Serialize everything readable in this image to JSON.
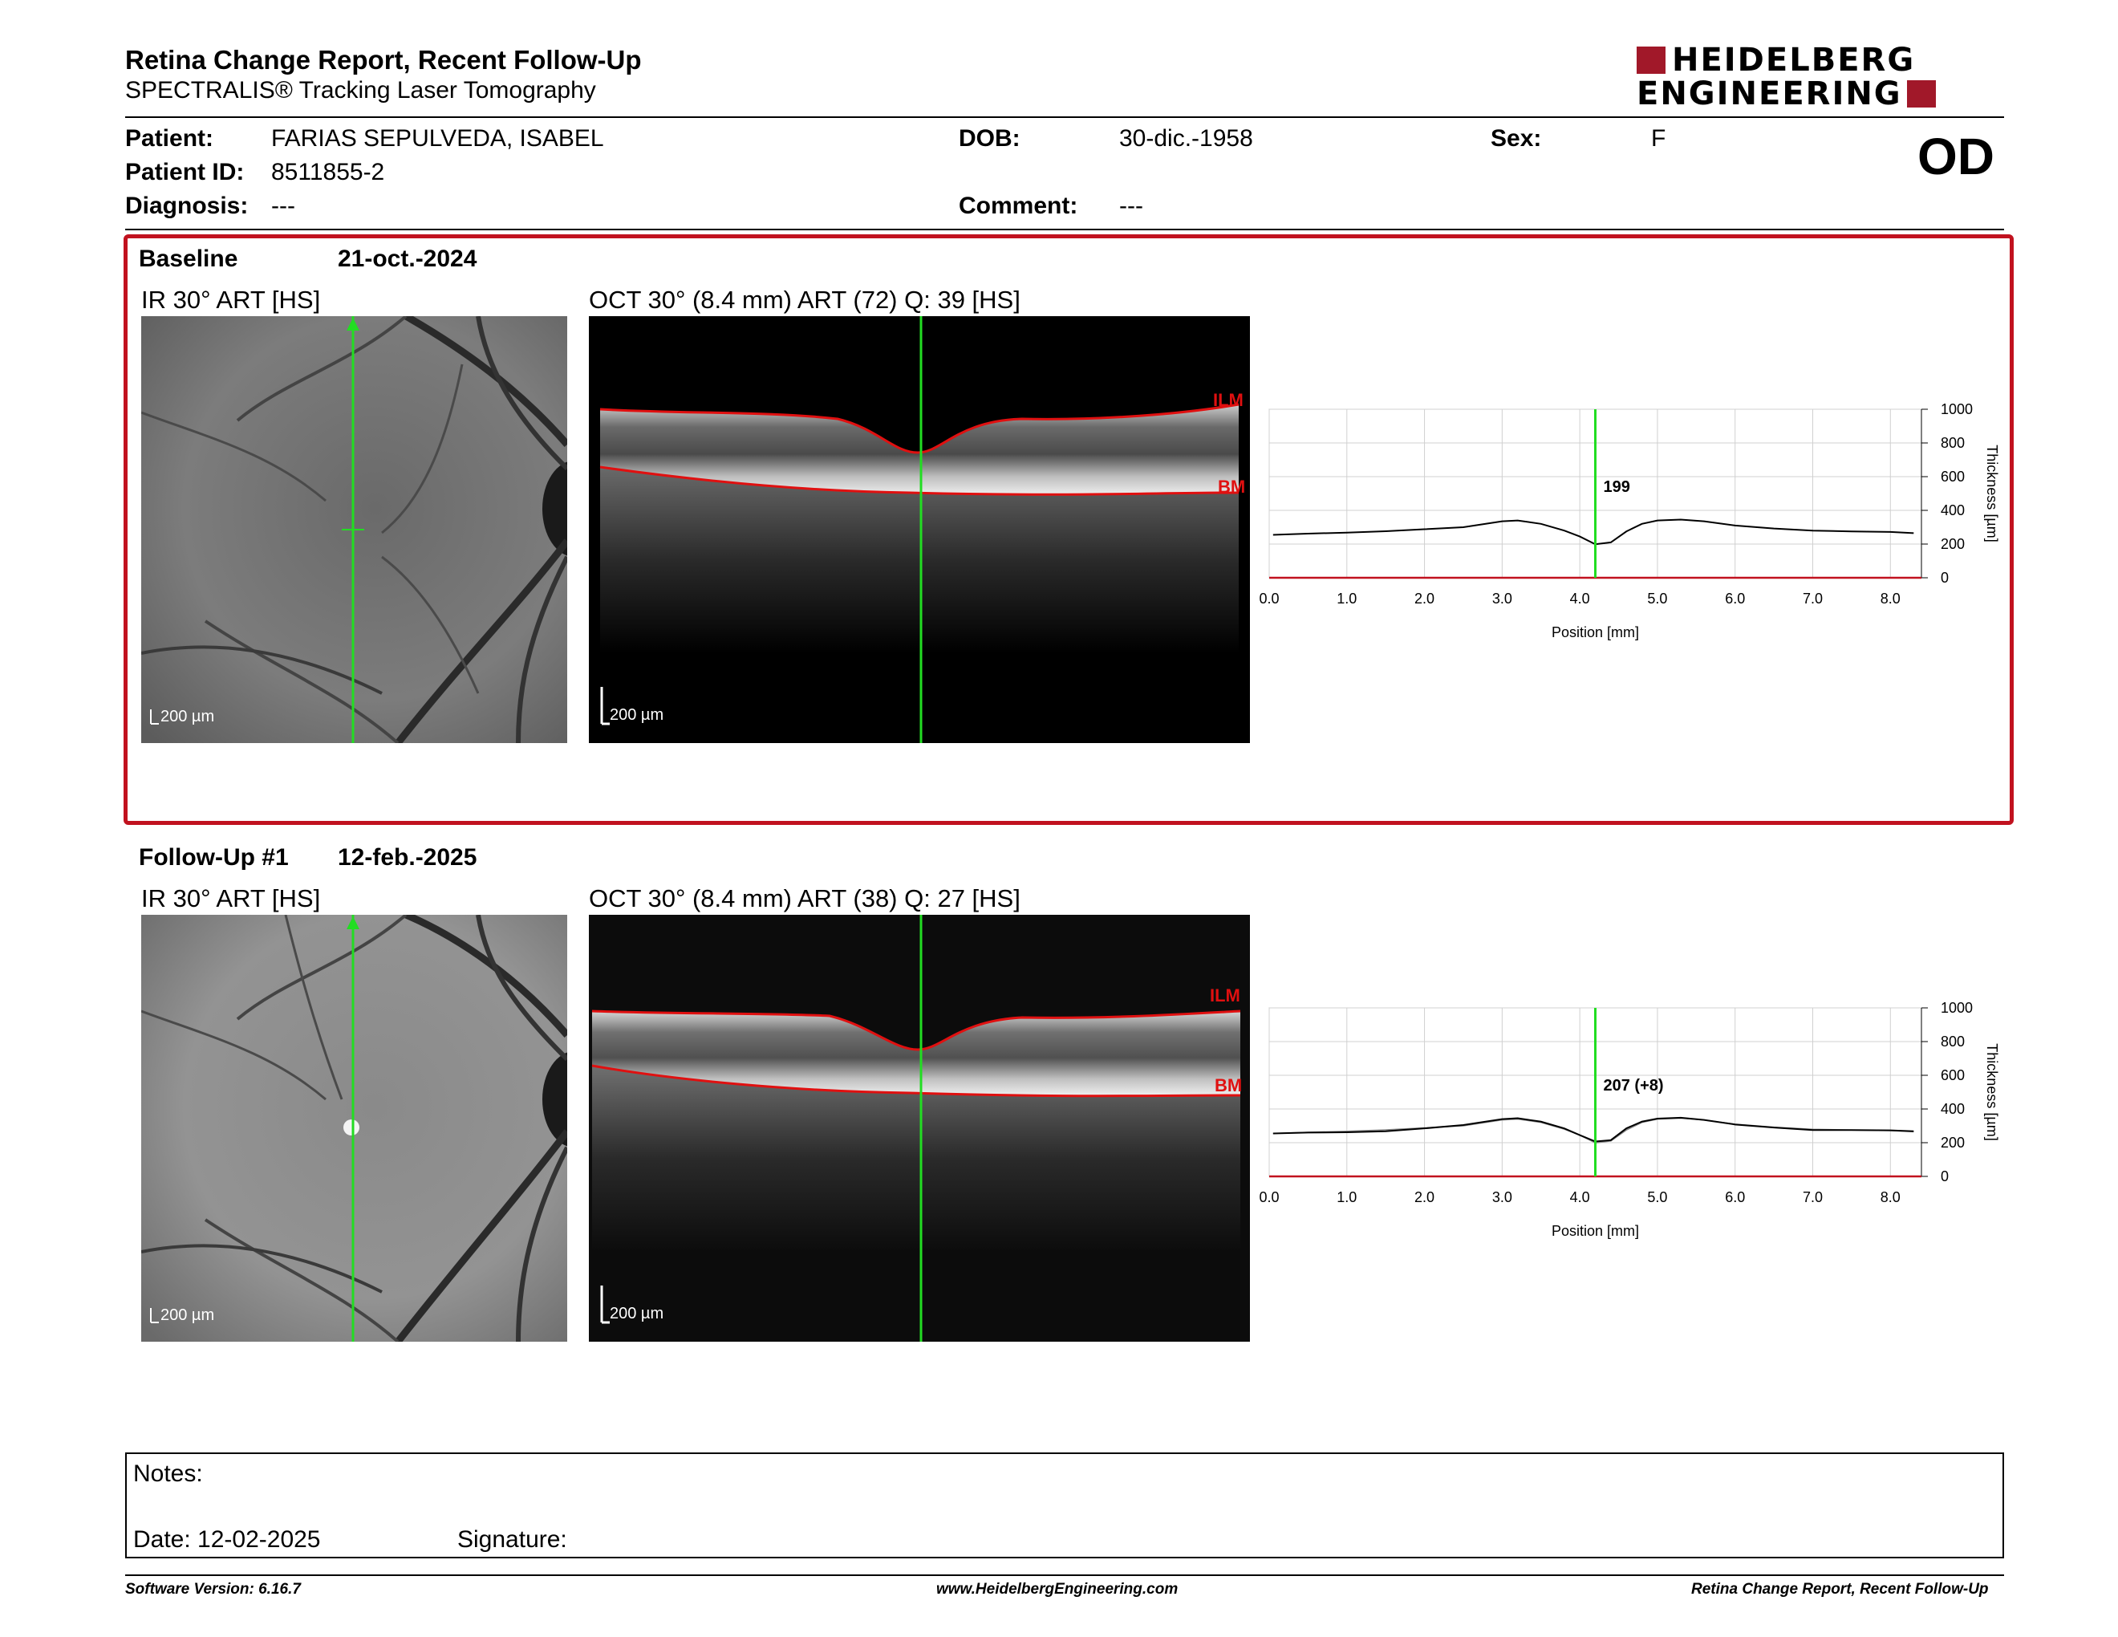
{
  "header": {
    "title": "Retina Change Report, Recent Follow-Up",
    "subtitle": "SPECTRALIS® Tracking Laser Tomography",
    "logo_line1": "HEIDELBERG",
    "logo_line2": "ENGINEERING",
    "eye": "OD"
  },
  "patient": {
    "patient_label": "Patient:",
    "patient_value": "FARIAS SEPULVEDA, ISABEL",
    "id_label": "Patient ID:",
    "id_value": "8511855-2",
    "diagnosis_label": "Diagnosis:",
    "diagnosis_value": "---",
    "dob_label": "DOB:",
    "dob_value": "30-dic.-1958",
    "comment_label": "Comment:",
    "comment_value": "---",
    "sex_label": "Sex:",
    "sex_value": "F"
  },
  "baseline": {
    "name": "Baseline",
    "date": "21-oct.-2024",
    "ir_title": "IR 30° ART [HS]",
    "oct_title": "OCT 30° (8.4 mm) ART (72) Q: 39 [HS]",
    "scale": "200 µm",
    "ilm": "ILM",
    "bm": "BM",
    "thickness_label": "199"
  },
  "followup": {
    "name": "Follow-Up #1",
    "date": "12-feb.-2025",
    "ir_title": "IR 30° ART [HS]",
    "oct_title": "OCT 30° (8.4 mm) ART (38) Q: 27 [HS]",
    "scale": "200 µm",
    "ilm": "ILM",
    "bm": "BM",
    "thickness_label": "207 (+8)"
  },
  "chart_data": [
    {
      "type": "line",
      "xlabel": "Position [mm]",
      "ylabel": "Thickness [µm]",
      "xlim": [
        0,
        8.4
      ],
      "ylim": [
        0,
        1000
      ],
      "x_ticks": [
        "0.0",
        "1.0",
        "2.0",
        "3.0",
        "4.0",
        "5.0",
        "6.0",
        "7.0",
        "8.0"
      ],
      "y_ticks": [
        "1000",
        "800",
        "600",
        "400",
        "200",
        "0"
      ],
      "grid": true,
      "cursor_x": 4.2,
      "cursor_label": "199",
      "series": [
        {
          "x": [
            0.05,
            0.5,
            1.0,
            1.5,
            2.0,
            2.5,
            3.0,
            3.2,
            3.5,
            3.8,
            4.0,
            4.2,
            4.4,
            4.6,
            4.8,
            5.0,
            5.3,
            5.6,
            6.0,
            6.5,
            7.0,
            7.5,
            8.0,
            8.3
          ],
          "values": [
            255,
            262,
            268,
            276,
            288,
            300,
            335,
            340,
            320,
            280,
            245,
            199,
            210,
            275,
            320,
            340,
            345,
            335,
            310,
            292,
            280,
            275,
            272,
            265
          ]
        }
      ]
    },
    {
      "type": "line",
      "xlabel": "Position [mm]",
      "ylabel": "Thickness [µm]",
      "xlim": [
        0,
        8.4
      ],
      "ylim": [
        0,
        1000
      ],
      "x_ticks": [
        "0.0",
        "1.0",
        "2.0",
        "3.0",
        "4.0",
        "5.0",
        "6.0",
        "7.0",
        "8.0"
      ],
      "y_ticks": [
        "1000",
        "800",
        "600",
        "400",
        "200",
        "0"
      ],
      "grid": true,
      "cursor_x": 4.2,
      "cursor_label": "207 (+8)",
      "series": [
        {
          "x": [
            0.05,
            0.5,
            1.0,
            1.5,
            2.0,
            2.5,
            3.0,
            3.2,
            3.5,
            3.8,
            4.0,
            4.2,
            4.4,
            4.6,
            4.8,
            5.0,
            5.3,
            5.6,
            6.0,
            6.5,
            7.0,
            7.5,
            8.0,
            8.3
          ],
          "values": [
            255,
            260,
            262,
            268,
            285,
            305,
            340,
            345,
            325,
            285,
            245,
            207,
            215,
            285,
            325,
            343,
            348,
            335,
            308,
            290,
            275,
            275,
            273,
            268
          ]
        },
        {
          "x": [
            0.05,
            0.5,
            1.0,
            1.5,
            2.0,
            2.5,
            3.0,
            3.2,
            3.5,
            3.8,
            4.0,
            4.2,
            4.4,
            4.6,
            4.8,
            5.0,
            5.3,
            5.6,
            6.0,
            6.5,
            7.0,
            7.5,
            8.0,
            8.3
          ],
          "values": [
            255,
            262,
            268,
            276,
            288,
            300,
            335,
            340,
            320,
            280,
            245,
            199,
            210,
            275,
            320,
            340,
            345,
            335,
            310,
            292,
            280,
            275,
            272,
            265
          ]
        }
      ]
    }
  ],
  "notes": {
    "label": "Notes:",
    "date_label": "Date: 12-02-2025",
    "signature_label": "Signature:"
  },
  "footer": {
    "software": "Software Version: 6.16.7",
    "website": "www.HeidelbergEngineering.com",
    "report": "Retina Change Report, Recent Follow-Up"
  },
  "colors": {
    "accent": "#c1121f",
    "cursor": "#22dd22",
    "boundary": "#e01010"
  }
}
